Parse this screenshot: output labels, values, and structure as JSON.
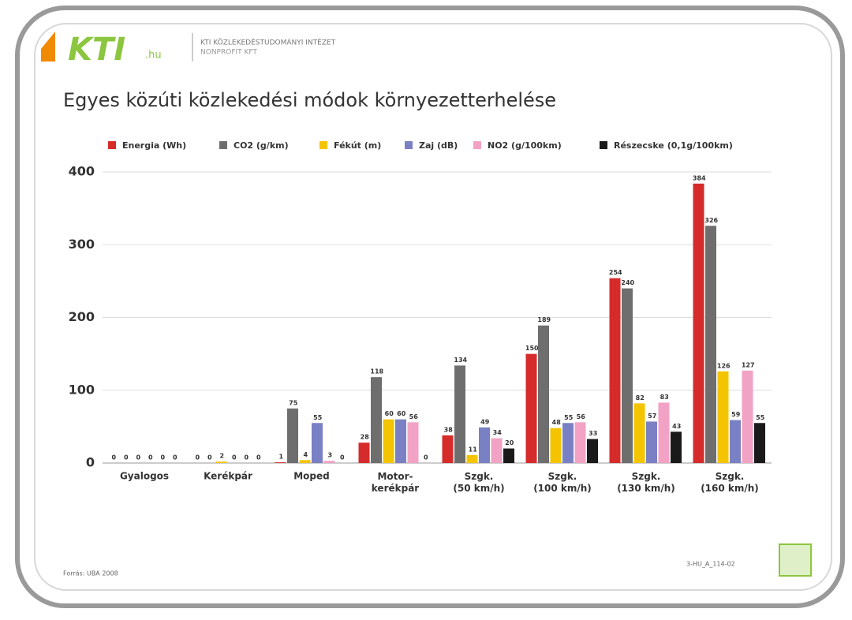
{
  "header": {
    "logo": "KTI",
    "logo_suffix": ".hu",
    "institute": "KTI KÖZLEKEDÉSTUDOMÁNYI INTÉZET",
    "institute_sub": "NONPROFIT KFT"
  },
  "footer": {
    "source": "Forrás: UBA 2008",
    "code": "3-HU_A_114-02"
  },
  "chart_data": {
    "type": "bar",
    "title": "Egyes közúti közlekedési módok környezetterhelése",
    "categories": [
      "Gyalogos",
      "Kerékpár",
      "Moped",
      "Motor-\nkerékpár",
      "Szgk.\n(50 km/h)",
      "Szgk.\n(100 km/h)",
      "Szgk.\n(130 km/h)",
      "Szgk.\n(160 km/h)"
    ],
    "series": [
      {
        "name": "Energia (Wh)",
        "color": "#d62b2b",
        "values": [
          0,
          0,
          1,
          28,
          38,
          150,
          254,
          384
        ]
      },
      {
        "name": "CO2 (g/km)",
        "color": "#6e6e6e",
        "values": [
          0,
          0,
          75,
          118,
          134,
          189,
          240,
          326
        ]
      },
      {
        "name": "Fékút (m)",
        "color": "#f5c400",
        "values": [
          0,
          2,
          4,
          60,
          11,
          48,
          82,
          126
        ]
      },
      {
        "name": "Zaj (dB)",
        "color": "#7a80c4",
        "values": [
          0,
          0,
          55,
          60,
          49,
          55,
          57,
          59
        ]
      },
      {
        "name": "NO2 (g/100km)",
        "color": "#f2a2c4",
        "values": [
          0,
          0,
          3,
          56,
          34,
          56,
          83,
          127
        ]
      },
      {
        "name": "Részecske (0,1g/100km)",
        "color": "#1a1a1a",
        "values": [
          0,
          0,
          0,
          0,
          20,
          33,
          43,
          55
        ]
      }
    ],
    "ylim": [
      0,
      400
    ],
    "yticks": [
      0,
      100,
      200,
      300,
      400
    ],
    "grid": true,
    "legend": "top"
  }
}
